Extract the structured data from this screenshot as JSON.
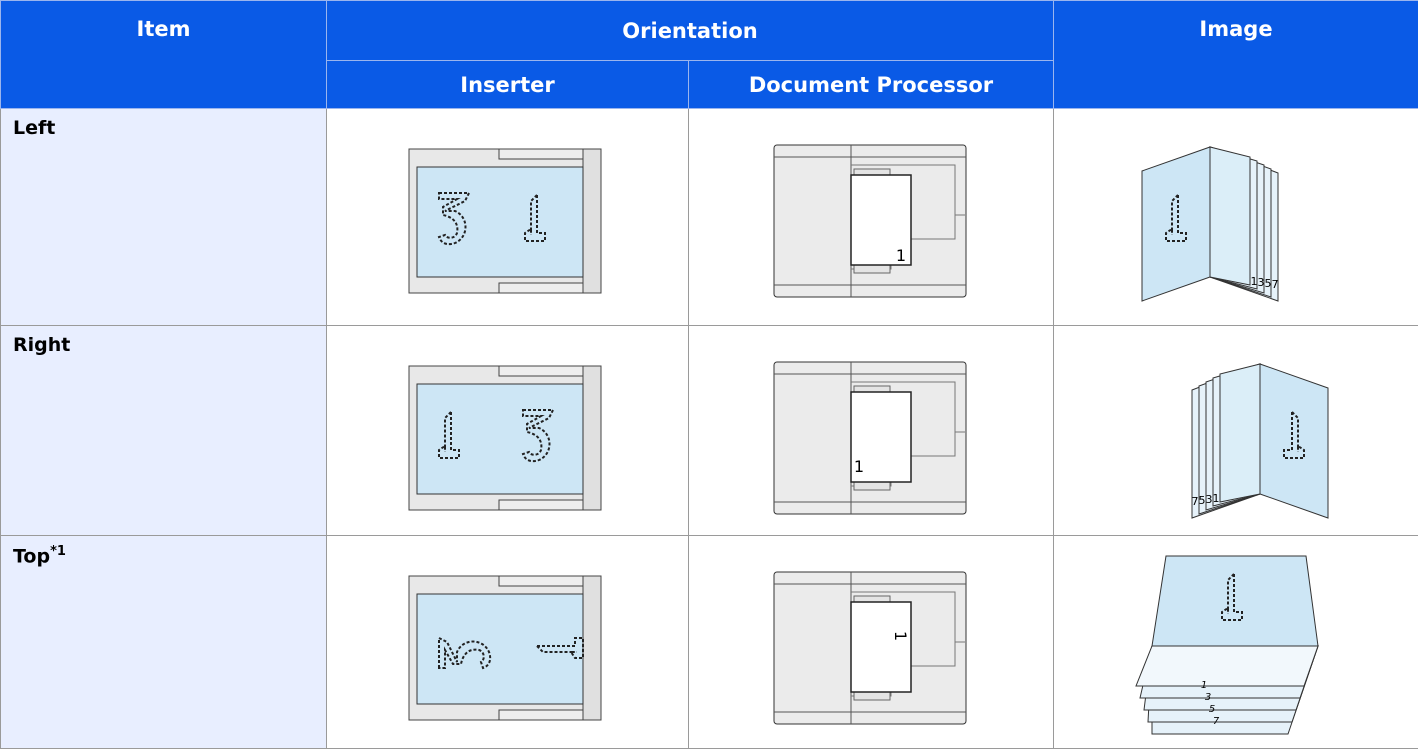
{
  "header": {
    "item": "Item",
    "orientation": "Orientation",
    "inserter": "Inserter",
    "document_processor": "Document Processor",
    "image": "Image"
  },
  "rows": [
    {
      "item": "Left",
      "processor_number": "1",
      "page_numbers": [
        "1",
        "3",
        "5",
        "7"
      ]
    },
    {
      "item": "Right",
      "processor_number": "1",
      "page_numbers": [
        "1",
        "3",
        "5",
        "7"
      ]
    },
    {
      "item": "Top",
      "note": "*1",
      "processor_number": "1",
      "page_numbers": [
        "1",
        "3",
        "5",
        "7"
      ]
    }
  ]
}
